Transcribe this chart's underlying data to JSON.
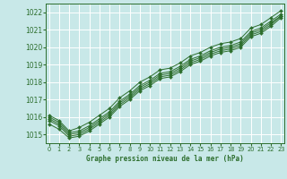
{
  "xlabel": "Graphe pression niveau de la mer (hPa)",
  "ylim": [
    1014.5,
    1022.5
  ],
  "xlim": [
    -0.3,
    23.3
  ],
  "yticks": [
    1015,
    1016,
    1017,
    1018,
    1019,
    1020,
    1021,
    1022
  ],
  "xticks": [
    0,
    1,
    2,
    3,
    4,
    5,
    6,
    7,
    8,
    9,
    10,
    11,
    12,
    13,
    14,
    15,
    16,
    17,
    18,
    19,
    20,
    21,
    22,
    23
  ],
  "background_color": "#c8e8e8",
  "grid_color": "#ffffff",
  "line_color": "#2d6e2d",
  "lines": [
    [
      1016.1,
      1015.8,
      1015.2,
      1015.4,
      1015.7,
      1016.1,
      1016.5,
      1017.1,
      1017.5,
      1018.0,
      1018.3,
      1018.7,
      1018.8,
      1019.1,
      1019.5,
      1019.7,
      1020.0,
      1020.2,
      1020.3,
      1020.5,
      1021.1,
      1021.3,
      1021.7,
      1022.1
    ],
    [
      1016.0,
      1015.7,
      1015.1,
      1015.2,
      1015.5,
      1015.9,
      1016.3,
      1016.9,
      1017.3,
      1017.8,
      1018.1,
      1018.5,
      1018.6,
      1018.9,
      1019.3,
      1019.5,
      1019.8,
      1020.0,
      1020.1,
      1020.3,
      1020.9,
      1021.1,
      1021.5,
      1021.9
    ],
    [
      1015.9,
      1015.6,
      1015.0,
      1015.1,
      1015.4,
      1015.8,
      1016.2,
      1016.8,
      1017.2,
      1017.7,
      1018.0,
      1018.4,
      1018.5,
      1018.8,
      1019.2,
      1019.4,
      1019.7,
      1019.9,
      1020.0,
      1020.2,
      1020.8,
      1021.0,
      1021.4,
      1021.8
    ],
    [
      1015.8,
      1015.5,
      1014.9,
      1015.0,
      1015.3,
      1015.7,
      1016.1,
      1016.7,
      1017.1,
      1017.6,
      1017.9,
      1018.3,
      1018.4,
      1018.7,
      1019.1,
      1019.3,
      1019.6,
      1019.8,
      1019.9,
      1020.1,
      1020.7,
      1020.9,
      1021.3,
      1021.8
    ],
    [
      1015.6,
      1015.3,
      1014.8,
      1014.9,
      1015.2,
      1015.6,
      1016.0,
      1016.6,
      1017.0,
      1017.5,
      1017.8,
      1018.2,
      1018.3,
      1018.6,
      1019.0,
      1019.2,
      1019.5,
      1019.7,
      1019.8,
      1020.0,
      1020.6,
      1020.8,
      1021.2,
      1021.7
    ]
  ]
}
